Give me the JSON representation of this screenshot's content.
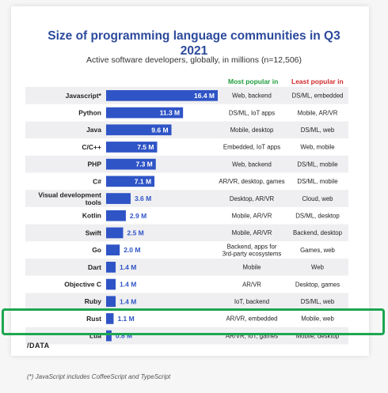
{
  "chart_data": {
    "type": "bar",
    "title_line1": "Size of programming language communities in Q3",
    "title_line2": "2021",
    "subtitle": "Active software developers, globally, in millions (n=12,506)",
    "most_popular_header": "Most popular in",
    "least_popular_header": "Least popular in",
    "unit_suffix": " M",
    "xlim": [
      0,
      16.4
    ],
    "categories": [
      "Javascript*",
      "Python",
      "Java",
      "C/C++",
      "PHP",
      "C#",
      "Visual development tools",
      "Kotlin",
      "Swift",
      "Go",
      "Dart",
      "Objective C",
      "Ruby",
      "Rust",
      "Lua"
    ],
    "values": [
      16.4,
      11.3,
      9.6,
      7.5,
      7.3,
      7.1,
      3.6,
      2.9,
      2.5,
      2.0,
      1.4,
      1.4,
      1.4,
      1.1,
      0.8
    ],
    "value_labels": [
      "16.4 M",
      "11.3 M",
      "9.6 M",
      "7.5 M",
      "7.3 M",
      "7.1 M",
      "3.6 M",
      "2.9 M",
      "2.5 M",
      "2.0 M",
      "1.4 M",
      "1.4 M",
      "1.4 M",
      "1.1 M",
      "0.8 M"
    ],
    "most_popular": [
      "Web, backend",
      "DS/ML, IoT apps",
      "Mobile, desktop",
      "Embedded, IoT apps",
      "Web, backend",
      "AR/VR, desktop, games",
      "Desktop, AR/VR",
      "Mobile, AR/VR",
      "Mobile, AR/VR",
      "Backend, apps for 3rd-party ecosystems",
      "Mobile",
      "AR/VR",
      "IoT, backend",
      "AR/VR, embedded",
      "AR/VR, IoT, games"
    ],
    "least_popular": [
      "DS/ML, embedded",
      "Mobile, AR/VR",
      "DS/ML, web",
      "Web, mobile",
      "DS/ML, mobile",
      "DS/ML, mobile",
      "Cloud, web",
      "DS/ML, desktop",
      "Backend, desktop",
      "Games, web",
      "Web",
      "Desktop, games",
      "DS/ML, web",
      "Mobile, web",
      "Mobile, desktop"
    ],
    "highlighted": "Rust",
    "colors": {
      "bar": "#2f54c6",
      "title": "#2c4a9c",
      "most_popular_header": "#1e9c3c",
      "least_popular_header": "#d12a2a",
      "highlight": "#1da650",
      "row_odd": "#efeff1",
      "row_even": "#ffffff"
    }
  },
  "logo": "/DATA",
  "footnote": "(*) JavaScript includes CoffeeScript and TypeScript"
}
